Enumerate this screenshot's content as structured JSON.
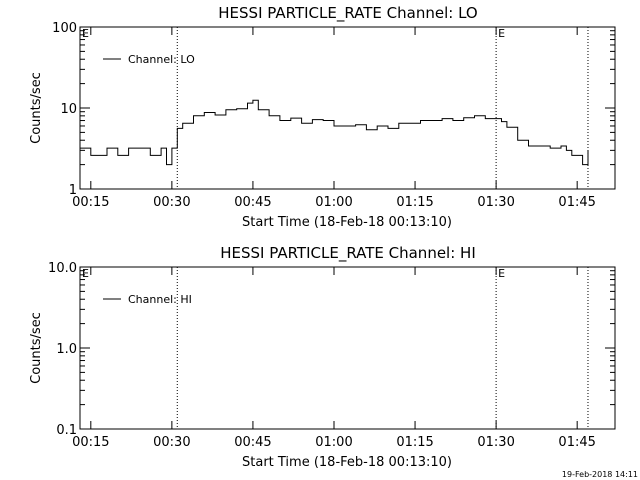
{
  "chart_data": [
    {
      "type": "line",
      "title": "HESSI PARTICLE_RATE Channel: LO",
      "xlabel": "Start Time (18-Feb-18 00:13:10)",
      "ylabel": "Counts/sec",
      "yscale": "log",
      "xlim": [
        "00:13",
        "01:52"
      ],
      "ylim": [
        1,
        100
      ],
      "x_ticks": [
        "00:15",
        "00:30",
        "00:45",
        "01:00",
        "01:15",
        "01:30",
        "01:45"
      ],
      "y_ticks": [
        "1",
        "10",
        "100"
      ],
      "grid": false,
      "legend_position": "top-left",
      "vlines": [
        "00:31",
        "01:30",
        "01:47"
      ],
      "flags": [
        {
          "x": "00:13",
          "text": "E"
        },
        {
          "x": "01:30",
          "text": "E"
        }
      ],
      "series": [
        {
          "name": "Channel: LO",
          "x": [
            "00:13",
            "00:15",
            "00:18",
            "00:20",
            "00:22",
            "00:24",
            "00:26",
            "00:28",
            "00:29",
            "00:30",
            "00:31",
            "00:32",
            "00:34",
            "00:36",
            "00:38",
            "00:40",
            "00:42",
            "00:44",
            "00:45",
            "00:46",
            "00:48",
            "00:50",
            "00:52",
            "00:54",
            "00:56",
            "00:58",
            "01:00",
            "01:02",
            "01:04",
            "01:06",
            "01:08",
            "01:10",
            "01:12",
            "01:14",
            "01:16",
            "01:18",
            "01:20",
            "01:22",
            "01:24",
            "01:26",
            "01:28",
            "01:30",
            "01:31",
            "01:32",
            "01:34",
            "01:36",
            "01:38",
            "01:40",
            "01:42",
            "01:43",
            "01:44",
            "01:45",
            "01:46",
            "01:47"
          ],
          "y": [
            3.2,
            2.6,
            3.2,
            2.6,
            3.2,
            3.2,
            2.6,
            3.2,
            2.0,
            3.2,
            5.6,
            6.5,
            8.0,
            8.8,
            8.2,
            9.5,
            9.8,
            11.5,
            12.5,
            9.5,
            8.0,
            7.0,
            7.5,
            6.5,
            7.2,
            7.0,
            6.0,
            6.0,
            6.2,
            5.4,
            6.0,
            5.6,
            6.5,
            6.5,
            7.0,
            7.0,
            7.4,
            7.0,
            7.6,
            8.0,
            7.4,
            7.4,
            6.8,
            5.8,
            4.0,
            3.4,
            3.4,
            3.2,
            3.4,
            3.0,
            2.6,
            2.6,
            2.0,
            3.0
          ]
        }
      ]
    },
    {
      "type": "line",
      "title": "HESSI PARTICLE_RATE Channel: HI",
      "xlabel": "Start Time (18-Feb-18 00:13:10)",
      "ylabel": "Counts/sec",
      "yscale": "log",
      "xlim": [
        "00:13",
        "01:52"
      ],
      "ylim": [
        0.1,
        10
      ],
      "x_ticks": [
        "00:15",
        "00:30",
        "00:45",
        "01:00",
        "01:15",
        "01:30",
        "01:45"
      ],
      "y_ticks": [
        "0.1",
        "1.0",
        "10.0"
      ],
      "grid": false,
      "legend_position": "top-left",
      "vlines": [
        "00:31",
        "01:30",
        "01:47"
      ],
      "flags": [
        {
          "x": "00:13",
          "text": "E"
        },
        {
          "x": "01:30",
          "text": "E"
        }
      ],
      "series": [
        {
          "name": "Channel: HI",
          "x": [],
          "y": []
        }
      ]
    }
  ],
  "timestamp": "19-Feb-2018 14:11"
}
